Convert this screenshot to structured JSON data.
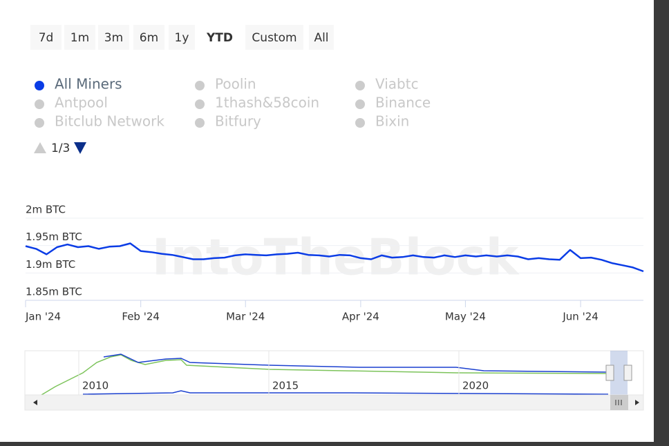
{
  "watermark": "IntoTheBlock",
  "range_selector": {
    "buttons": [
      "7d",
      "1m",
      "3m",
      "6m",
      "1y",
      "YTD",
      "Custom",
      "All"
    ],
    "selected_index": 5
  },
  "legend_page": "1/3",
  "hidden_series": [
    "Antpool",
    "Bitclub Network",
    "Poolin",
    "1thash&58coin",
    "Bitfury",
    "Viabtc",
    "Binance",
    "Bixin"
  ],
  "navigator_labels": [
    "2010",
    "2015",
    "2020"
  ],
  "chart_data": {
    "type": "line",
    "x": [
      "Jan '24",
      null,
      null,
      null,
      null,
      null,
      null,
      null,
      null,
      null,
      null,
      "Feb '24",
      null,
      null,
      null,
      null,
      null,
      null,
      null,
      null,
      null,
      "Mar '24",
      null,
      null,
      null,
      null,
      null,
      null,
      null,
      null,
      null,
      null,
      "Apr '24",
      null,
      null,
      null,
      null,
      null,
      null,
      null,
      null,
      null,
      "May '24",
      null,
      null,
      null,
      null,
      null,
      null,
      null,
      null,
      null,
      null,
      "Jun '24",
      null,
      null,
      null,
      null,
      null,
      null
    ],
    "series": [
      {
        "name": "All Miners",
        "color": "#0a3ce6",
        "values": [
          1949000,
          1944000,
          1934000,
          1947000,
          1952000,
          1947000,
          1949000,
          1944000,
          1948000,
          1949000,
          1954000,
          1940000,
          1938000,
          1935000,
          1933000,
          1929000,
          1925000,
          1925000,
          1927000,
          1928000,
          1932000,
          1934000,
          1933000,
          1932000,
          1934000,
          1935000,
          1937000,
          1933000,
          1932000,
          1930000,
          1933000,
          1932000,
          1927000,
          1925000,
          1932000,
          1928000,
          1929000,
          1932000,
          1929000,
          1928000,
          1932000,
          1929000,
          1932000,
          1930000,
          1932000,
          1930000,
          1932000,
          1930000,
          1925000,
          1927000,
          1925000,
          1924000,
          1942000,
          1927000,
          1928000,
          1924000,
          1918000,
          1914000,
          1910000,
          1903000
        ]
      }
    ],
    "ylim": [
      1850000,
      2000000
    ],
    "yticks": [
      {
        "value": 1850000,
        "label": "1.85m BTC"
      },
      {
        "value": 1900000,
        "label": "1.9m BTC"
      },
      {
        "value": 1950000,
        "label": "1.95m BTC"
      },
      {
        "value": 2000000,
        "label": "2m BTC"
      }
    ],
    "grid": true
  }
}
